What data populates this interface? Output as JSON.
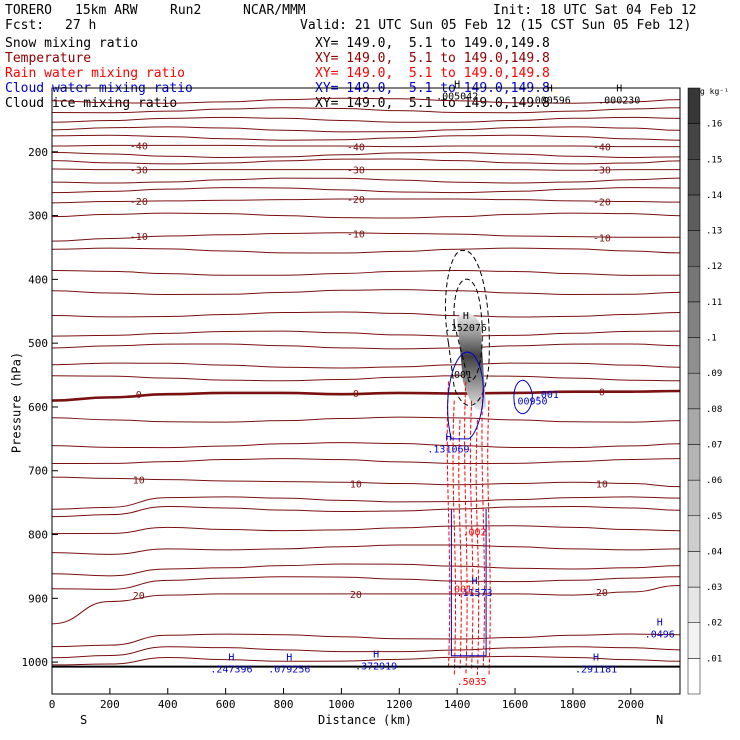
{
  "header": {
    "model": "TORERO",
    "config": "15km ARW",
    "run": "Run2",
    "org": "NCAR/MMM",
    "init": "Init: 18 UTC Sat 04 Feb 12",
    "fcst_label": "Fcst:",
    "fcst_hours": "27 h",
    "valid": "Valid: 21 UTC Sun 05 Feb 12 (15 CST Sun 05 Feb 12)"
  },
  "fields": [
    {
      "name": "Snow mixing ratio",
      "xy": "XY= 149.0,  5.1 to 149.0,149.8",
      "color": "#000000"
    },
    {
      "name": "Temperature",
      "xy": "XY= 149.0,  5.1 to 149.0,149.8",
      "color": "#8b0000"
    },
    {
      "name": "Rain water mixing ratio",
      "xy": "XY= 149.0,  5.1 to 149.0,149.8",
      "color": "#ff0000"
    },
    {
      "name": "Cloud water mixing ratio",
      "xy": "XY= 149.0,  5.1 to 149.0,149.8",
      "color": "#0000cc"
    },
    {
      "name": "Cloud ice mixing ratio",
      "xy": "XY= 149.0,  5.1 to 149.0,149.8",
      "color": "#000000"
    }
  ],
  "chart_data": {
    "type": "heatmap",
    "xlabel": "Distance (km)",
    "ylabel": "Pressure (hPa)",
    "xlim": [
      0,
      2170
    ],
    "ylim": [
      1050,
      100
    ],
    "x_ticks": [
      0,
      200,
      400,
      600,
      800,
      1000,
      1200,
      1400,
      1600,
      1800,
      2000
    ],
    "y_ticks": [
      200,
      300,
      400,
      500,
      600,
      700,
      800,
      900,
      1000
    ],
    "x_end_labels": {
      "left": "S",
      "right": "N"
    },
    "colorbar": {
      "unit": "g kg⁻¹",
      "levels": [
        ".01",
        ".02",
        ".03",
        ".04",
        ".05",
        ".06",
        ".07",
        ".08",
        ".09",
        ".1",
        ".11",
        ".12",
        ".13",
        ".14",
        ".15",
        ".16"
      ]
    },
    "temperature_contours": [
      {
        "value": -40,
        "label": "-40",
        "p": [
          191,
          190,
          190,
          190,
          191,
          191,
          192,
          191,
          191,
          191,
          192,
          192
        ]
      },
      {
        "value": -30,
        "label": "-30",
        "p": [
          227,
          228,
          228,
          228,
          228,
          228,
          228,
          228,
          228,
          229,
          228,
          228
        ]
      },
      {
        "value": -20,
        "label": "-20",
        "p": [
          280,
          278,
          277,
          276,
          275,
          274,
          274,
          274,
          275,
          277,
          278,
          279
        ]
      },
      {
        "value": -10,
        "label": "-10",
        "p": [
          340,
          336,
          332,
          330,
          328,
          327,
          328,
          329,
          332,
          333,
          334,
          334
        ]
      },
      {
        "value": 0,
        "label": "0",
        "p": [
          590,
          585,
          580,
          578,
          578,
          580,
          578,
          579,
          578,
          576,
          576,
          575
        ]
      },
      {
        "value": 10,
        "label": "10",
        "p": [
          710,
          712,
          714,
          716,
          717,
          718,
          720,
          722,
          720,
          718,
          720,
          725
        ]
      },
      {
        "value": 20,
        "label": "20",
        "p": [
          940,
          905,
          895,
          893,
          893,
          893,
          893,
          893,
          893,
          895,
          890,
          880
        ]
      }
    ],
    "extra_temp_levels_hpa": [
      120,
      135,
      150,
      165,
      178,
      205,
      215,
      245,
      260,
      300,
      355,
      390,
      420,
      455,
      485,
      505,
      535,
      555,
      620,
      660,
      685,
      745,
      760,
      790,
      820,
      850,
      870,
      960,
      980,
      995
    ],
    "distance_km": [
      0,
      200,
      400,
      600,
      800,
      1000,
      1200,
      1400,
      1600,
      1800,
      2000,
      2170
    ],
    "labels_maxima": [
      {
        "text": "H",
        "sub": ".005042",
        "x": 1400,
        "p": 112,
        "color": "#000000"
      },
      {
        "text": "H",
        "sub": ".000596",
        "x": 1720,
        "p": 118,
        "color": "#000000"
      },
      {
        "text": "H",
        "sub": ".000230",
        "x": 1960,
        "p": 118,
        "color": "#000000"
      },
      {
        "text": "H",
        "sub": ".152076",
        "x": 1430,
        "p": 475,
        "color": "#000000"
      },
      {
        "text": "H",
        "sub": ".131069",
        "x": 1370,
        "p": 665,
        "color": "#0000cc"
      },
      {
        "text": "H",
        "sub": ".247396",
        "x": 620,
        "p": 1010,
        "color": "#0000cc"
      },
      {
        "text": "H",
        "sub": ".079256",
        "x": 820,
        "p": 1010,
        "color": "#0000cc"
      },
      {
        "text": "H",
        "sub": ".372919",
        "x": 1120,
        "p": 1005,
        "color": "#0000cc"
      },
      {
        "text": "H",
        "sub": ".291181",
        "x": 1880,
        "p": 1010,
        "color": "#0000cc"
      },
      {
        "text": "H",
        "sub": ".11573",
        "x": 1460,
        "p": 890,
        "color": "#0000cc"
      },
      {
        "text": "H",
        "sub": ".0496",
        "x": 2100,
        "p": 955,
        "color": "#0000cc"
      },
      {
        "text": "",
        "sub": ".5035",
        "x": 1450,
        "p": 1030,
        "color": "#ff0000"
      },
      {
        "text": "",
        "sub": ".001",
        "x": 1410,
        "p": 885,
        "color": "#ff0000"
      },
      {
        "text": "",
        "sub": ".002",
        "x": 1460,
        "p": 795,
        "color": "#ff0000"
      },
      {
        "text": "",
        "sub": ".001",
        "x": 1410,
        "p": 548,
        "color": "#000000"
      },
      {
        "text": "",
        "sub": ".001",
        "x": 1710,
        "p": 580,
        "color": "#0000cc"
      },
      {
        "text": "",
        "sub": ".00950",
        "x": 1650,
        "p": 590,
        "color": "#0000cc"
      }
    ]
  }
}
